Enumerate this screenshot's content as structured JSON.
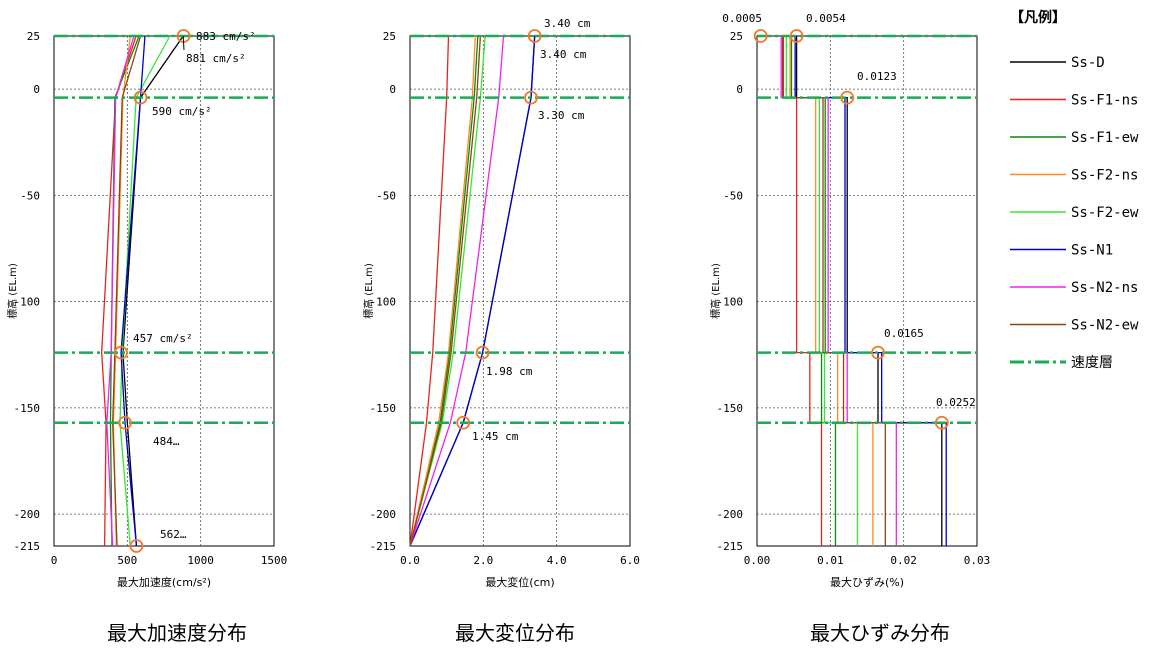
{
  "legend": {
    "title": "【凡例】",
    "items": [
      {
        "label": "Ss-D",
        "color": "#000000",
        "dash": "solid"
      },
      {
        "label": "Ss-F1-ns",
        "color": "#e8231d",
        "dash": "solid"
      },
      {
        "label": "Ss-F1-ew",
        "color": "#0a8a0a",
        "dash": "solid"
      },
      {
        "label": "Ss-F2-ns",
        "color": "#ff8c1a",
        "dash": "solid"
      },
      {
        "label": "Ss-F2-ew",
        "color": "#33e833",
        "dash": "solid"
      },
      {
        "label": "Ss-N1",
        "color": "#0000cc",
        "dash": "solid"
      },
      {
        "label": "Ss-N2-ns",
        "color": "#ee22ee",
        "dash": "solid"
      },
      {
        "label": "Ss-N2-ew",
        "color": "#8b4513",
        "dash": "solid"
      },
      {
        "label": "速度層",
        "color": "#1aab55",
        "dash": "dashdot"
      }
    ]
  },
  "chart_data": [
    {
      "type": "line",
      "caption": "最大加速度分布",
      "xlabel": "最大加速度(cm/s²)",
      "ylabel": "標高 (EL.m)",
      "xlim": [
        0,
        1500
      ],
      "ylim": [
        -215,
        25
      ],
      "xticks": [
        "0",
        "500",
        "1000",
        "1500"
      ],
      "yticks": [
        "25",
        "0",
        "-50",
        "-100",
        "-150",
        "-200",
        "-215"
      ],
      "velocity_layers": [
        25,
        -4,
        -124,
        -157
      ],
      "grid": true,
      "series": [
        {
          "name": "Ss-D",
          "points": [
            [
              881,
              25
            ],
            [
              590,
              -4
            ],
            [
              470,
              -124
            ],
            [
              500,
              -157
            ],
            [
              562,
              -215
            ]
          ]
        },
        {
          "name": "Ss-F1-ns",
          "points": [
            [
              560,
              25
            ],
            [
              420,
              -4
            ],
            [
              325,
              -124
            ],
            [
              355,
              -157
            ],
            [
              345,
              -215
            ]
          ]
        },
        {
          "name": "Ss-F1-ew",
          "points": [
            [
              580,
              25
            ],
            [
              415,
              -4
            ],
            [
              390,
              -124
            ],
            [
              385,
              -157
            ],
            [
              395,
              -215
            ]
          ]
        },
        {
          "name": "Ss-F2-ns",
          "points": [
            [
              520,
              25
            ],
            [
              470,
              -4
            ],
            [
              420,
              -124
            ],
            [
              405,
              -157
            ],
            [
              425,
              -215
            ]
          ]
        },
        {
          "name": "Ss-F2-ew",
          "points": [
            [
              790,
              25
            ],
            [
              560,
              -4
            ],
            [
              465,
              -124
            ],
            [
              450,
              -157
            ],
            [
              520,
              -215
            ]
          ]
        },
        {
          "name": "Ss-N1",
          "points": [
            [
              620,
              25
            ],
            [
              590,
              -4
            ],
            [
              457,
              -124
            ],
            [
              484,
              -157
            ],
            [
              562,
              -215
            ]
          ]
        },
        {
          "name": "Ss-N2-ns",
          "points": [
            [
              545,
              25
            ],
            [
              420,
              -4
            ],
            [
              390,
              -124
            ],
            [
              360,
              -157
            ],
            [
              400,
              -215
            ]
          ]
        },
        {
          "name": "Ss-N2-ew",
          "points": [
            [
              590,
              25
            ],
            [
              465,
              -4
            ],
            [
              415,
              -124
            ],
            [
              400,
              -157
            ],
            [
              430,
              -215
            ]
          ]
        }
      ],
      "markers": [
        [
          883,
          25
        ],
        [
          590,
          -4
        ],
        [
          457,
          -124
        ],
        [
          484,
          -157
        ],
        [
          562,
          -215
        ]
      ],
      "annotations": [
        {
          "text": "883 cm/s²"
        },
        {
          "text": "881 cm/s²"
        },
        {
          "text": "590 cm/s²"
        },
        {
          "text": "457 cm/s²"
        },
        {
          "text": "484…"
        },
        {
          "text": "562…"
        }
      ]
    },
    {
      "type": "line",
      "caption": "最大変位分布",
      "xlabel": "最大変位(cm)",
      "ylabel": "標高 (EL.m)",
      "xlim": [
        0,
        6
      ],
      "ylim": [
        -215,
        25
      ],
      "xticks": [
        "0.0",
        "2.0",
        "4.0",
        "6.0"
      ],
      "yticks": [
        "25",
        "0",
        "-50",
        "-100",
        "-150",
        "-200",
        "-215"
      ],
      "velocity_layers": [
        25,
        -4,
        -124,
        -157
      ],
      "grid": true,
      "series": [
        {
          "name": "Ss-D",
          "points": [
            [
              3.4,
              25
            ],
            [
              3.3,
              -4
            ],
            [
              1.98,
              -124
            ],
            [
              1.45,
              -157
            ],
            [
              0,
              -215
            ]
          ]
        },
        {
          "name": "Ss-F1-ns",
          "points": [
            [
              1.05,
              25
            ],
            [
              1.0,
              -4
            ],
            [
              0.62,
              -124
            ],
            [
              0.45,
              -157
            ],
            [
              0,
              -215
            ]
          ]
        },
        {
          "name": "Ss-F1-ew",
          "points": [
            [
              1.85,
              25
            ],
            [
              1.75,
              -4
            ],
            [
              1.08,
              -124
            ],
            [
              0.82,
              -157
            ],
            [
              0,
              -215
            ]
          ]
        },
        {
          "name": "Ss-F2-ns",
          "points": [
            [
              1.78,
              25
            ],
            [
              1.7,
              -4
            ],
            [
              1.05,
              -124
            ],
            [
              0.78,
              -157
            ],
            [
              0,
              -215
            ]
          ]
        },
        {
          "name": "Ss-F2-ew",
          "points": [
            [
              2.05,
              25
            ],
            [
              1.92,
              -4
            ],
            [
              1.18,
              -124
            ],
            [
              0.88,
              -157
            ],
            [
              0,
              -215
            ]
          ]
        },
        {
          "name": "Ss-N1",
          "points": [
            [
              3.4,
              25
            ],
            [
              3.3,
              -4
            ],
            [
              1.98,
              -124
            ],
            [
              1.45,
              -157
            ],
            [
              0,
              -215
            ]
          ]
        },
        {
          "name": "Ss-N2-ns",
          "points": [
            [
              2.55,
              25
            ],
            [
              2.42,
              -4
            ],
            [
              1.52,
              -124
            ],
            [
              1.1,
              -157
            ],
            [
              0,
              -215
            ]
          ]
        },
        {
          "name": "Ss-N2-ew",
          "points": [
            [
              1.92,
              25
            ],
            [
              1.82,
              -4
            ],
            [
              1.12,
              -124
            ],
            [
              0.85,
              -157
            ],
            [
              0,
              -215
            ]
          ]
        }
      ],
      "markers": [
        [
          3.4,
          25
        ],
        [
          3.3,
          -4
        ],
        [
          1.98,
          -124
        ],
        [
          1.45,
          -157
        ]
      ],
      "annotations": [
        {
          "text": "3.40 cm"
        },
        {
          "text": "3.40 cm"
        },
        {
          "text": "3.30 cm"
        },
        {
          "text": "1.98 cm"
        },
        {
          "text": "1.45 cm"
        }
      ]
    },
    {
      "type": "line",
      "caption": "最大ひずみ分布",
      "xlabel": "最大ひずみ(%)",
      "ylabel": "標高 (EL.m)",
      "xlim": [
        0,
        0.03
      ],
      "ylim": [
        -215,
        25
      ],
      "xticks": [
        "0.00",
        "0.01",
        "0.02",
        "0.03"
      ],
      "yticks": [
        "25",
        "0",
        "-50",
        "-100",
        "-150",
        "-200",
        "-215"
      ],
      "velocity_layers": [
        25,
        -4,
        -124,
        -157
      ],
      "grid": true,
      "layers": [
        25,
        -4,
        -124,
        -157,
        -215
      ],
      "series": [
        {
          "name": "Ss-D",
          "values": [
            0.0054,
            0.0123,
            0.0165,
            0.0252
          ]
        },
        {
          "name": "Ss-F1-ns",
          "values": [
            0.0036,
            0.0054,
            0.0072,
            0.0088
          ]
        },
        {
          "name": "Ss-F1-ew",
          "values": [
            0.0047,
            0.0093,
            0.0088,
            0.0107
          ]
        },
        {
          "name": "Ss-F2-ns",
          "values": [
            0.0045,
            0.008,
            0.011,
            0.0158
          ]
        },
        {
          "name": "Ss-F2-ew",
          "values": [
            0.004,
            0.0085,
            0.0092,
            0.0137
          ]
        },
        {
          "name": "Ss-N1",
          "values": [
            0.0052,
            0.012,
            0.017,
            0.0258
          ]
        },
        {
          "name": "Ss-N2-ns",
          "values": [
            0.0033,
            0.0097,
            0.0123,
            0.019
          ]
        },
        {
          "name": "Ss-N2-ew",
          "values": [
            0.0035,
            0.009,
            0.0118,
            0.0175
          ]
        }
      ],
      "markers": [
        [
          0.0005,
          25
        ],
        [
          0.0054,
          25
        ],
        [
          0.0123,
          -4
        ],
        [
          0.0165,
          -124
        ],
        [
          0.0252,
          -157
        ]
      ],
      "annotations": [
        {
          "text": "0.0005"
        },
        {
          "text": "0.0054"
        },
        {
          "text": "0.0123"
        },
        {
          "text": "0.0165"
        },
        {
          "text": "0.0252"
        }
      ]
    }
  ]
}
